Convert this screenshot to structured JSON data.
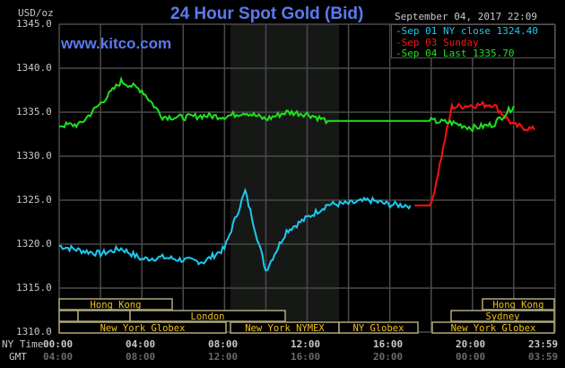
{
  "header": {
    "title": "24 Hour Spot Gold (Bid)",
    "site": "www.kitco.com",
    "unit": "USD/oz",
    "datetime": "September 04, 2017 22:09"
  },
  "legend": {
    "items": [
      {
        "label": "Sep 01 NY close 1324.40",
        "color": "#1ec8f0"
      },
      {
        "label": "Sep 03 Sunday",
        "color": "#ff1010"
      },
      {
        "label": "Sep 04 Last 1335.70",
        "color": "#20e020"
      }
    ]
  },
  "axes": {
    "y_ticks": [
      "1345.0",
      "1340.0",
      "1335.0",
      "1330.0",
      "1325.0",
      "1320.0",
      "1315.0",
      "1310.0"
    ],
    "x_row1_label": "NY Time",
    "x_row2_label": "GMT",
    "x_ny": [
      "00:00",
      "04:00",
      "08:00",
      "12:00",
      "16:00",
      "20:00",
      "23:59"
    ],
    "x_gmt": [
      "04:00",
      "08:00",
      "12:00",
      "16:00",
      "20:00",
      "00:00",
      "03:59"
    ]
  },
  "sessions": [
    {
      "label": "Hong Kong",
      "row": 0
    },
    {
      "label": "London",
      "row": 1
    },
    {
      "label": "New York Globex",
      "row": 2
    },
    {
      "label": "New York NYMEX",
      "row": 2
    },
    {
      "label": "NY Globex",
      "row": 2
    },
    {
      "label": "Hong Kong",
      "row": 0
    },
    {
      "label": "Sydney",
      "row": 1
    },
    {
      "label": "New York Globex",
      "row": 2
    }
  ],
  "chart_data": {
    "type": "line",
    "title": "24 Hour Spot Gold (Bid)",
    "ylabel": "USD/oz",
    "xlabel": "NY Time",
    "ylim": [
      1310,
      1345
    ],
    "grid": true,
    "legend_position": "top-right",
    "x_hours": [
      0,
      1,
      2,
      3,
      4,
      5,
      6,
      7,
      8,
      9,
      10,
      11,
      12,
      13,
      14,
      15,
      16,
      17,
      18,
      19,
      20,
      21,
      22,
      23
    ],
    "series": [
      {
        "name": "Sep 01 NY close 1324.40",
        "color": "#1ec8f0",
        "values": [
          1319.8,
          1319.3,
          1318.9,
          1319.5,
          1318.3,
          1318.5,
          1318.2,
          1318.0,
          1319.5,
          1326.0,
          1317.0,
          1321.5,
          1323.0,
          1324.5,
          1324.6,
          1325.0,
          1324.5,
          1324.4,
          null,
          null,
          null,
          null,
          null,
          null
        ]
      },
      {
        "name": "Sep 03 Sunday",
        "color": "#ff1010",
        "values": [
          null,
          null,
          null,
          null,
          null,
          null,
          null,
          null,
          null,
          null,
          null,
          null,
          null,
          null,
          null,
          null,
          null,
          null,
          1324.4,
          1335.6,
          1335.8,
          1335.9,
          1333.5,
          1333.0
        ]
      },
      {
        "name": "Sep 04 Last 1335.70",
        "color": "#20e020",
        "values": [
          1333.5,
          1333.6,
          1336.0,
          1338.5,
          1337.5,
          1334.5,
          1334.4,
          1334.6,
          1334.5,
          1335.0,
          1334.2,
          1335.0,
          1334.8,
          1334.0,
          1334.0,
          1334.0,
          1334.0,
          1334.0,
          1334.0,
          1333.8,
          1333.2,
          1333.6,
          1335.7,
          null
        ]
      }
    ]
  },
  "colors": {
    "background": "#000000",
    "grid": "#4a4a4a",
    "shade": "#151815",
    "title": "#5a7af0",
    "session_text": "#f0c020",
    "session_border": "#b0a878"
  }
}
